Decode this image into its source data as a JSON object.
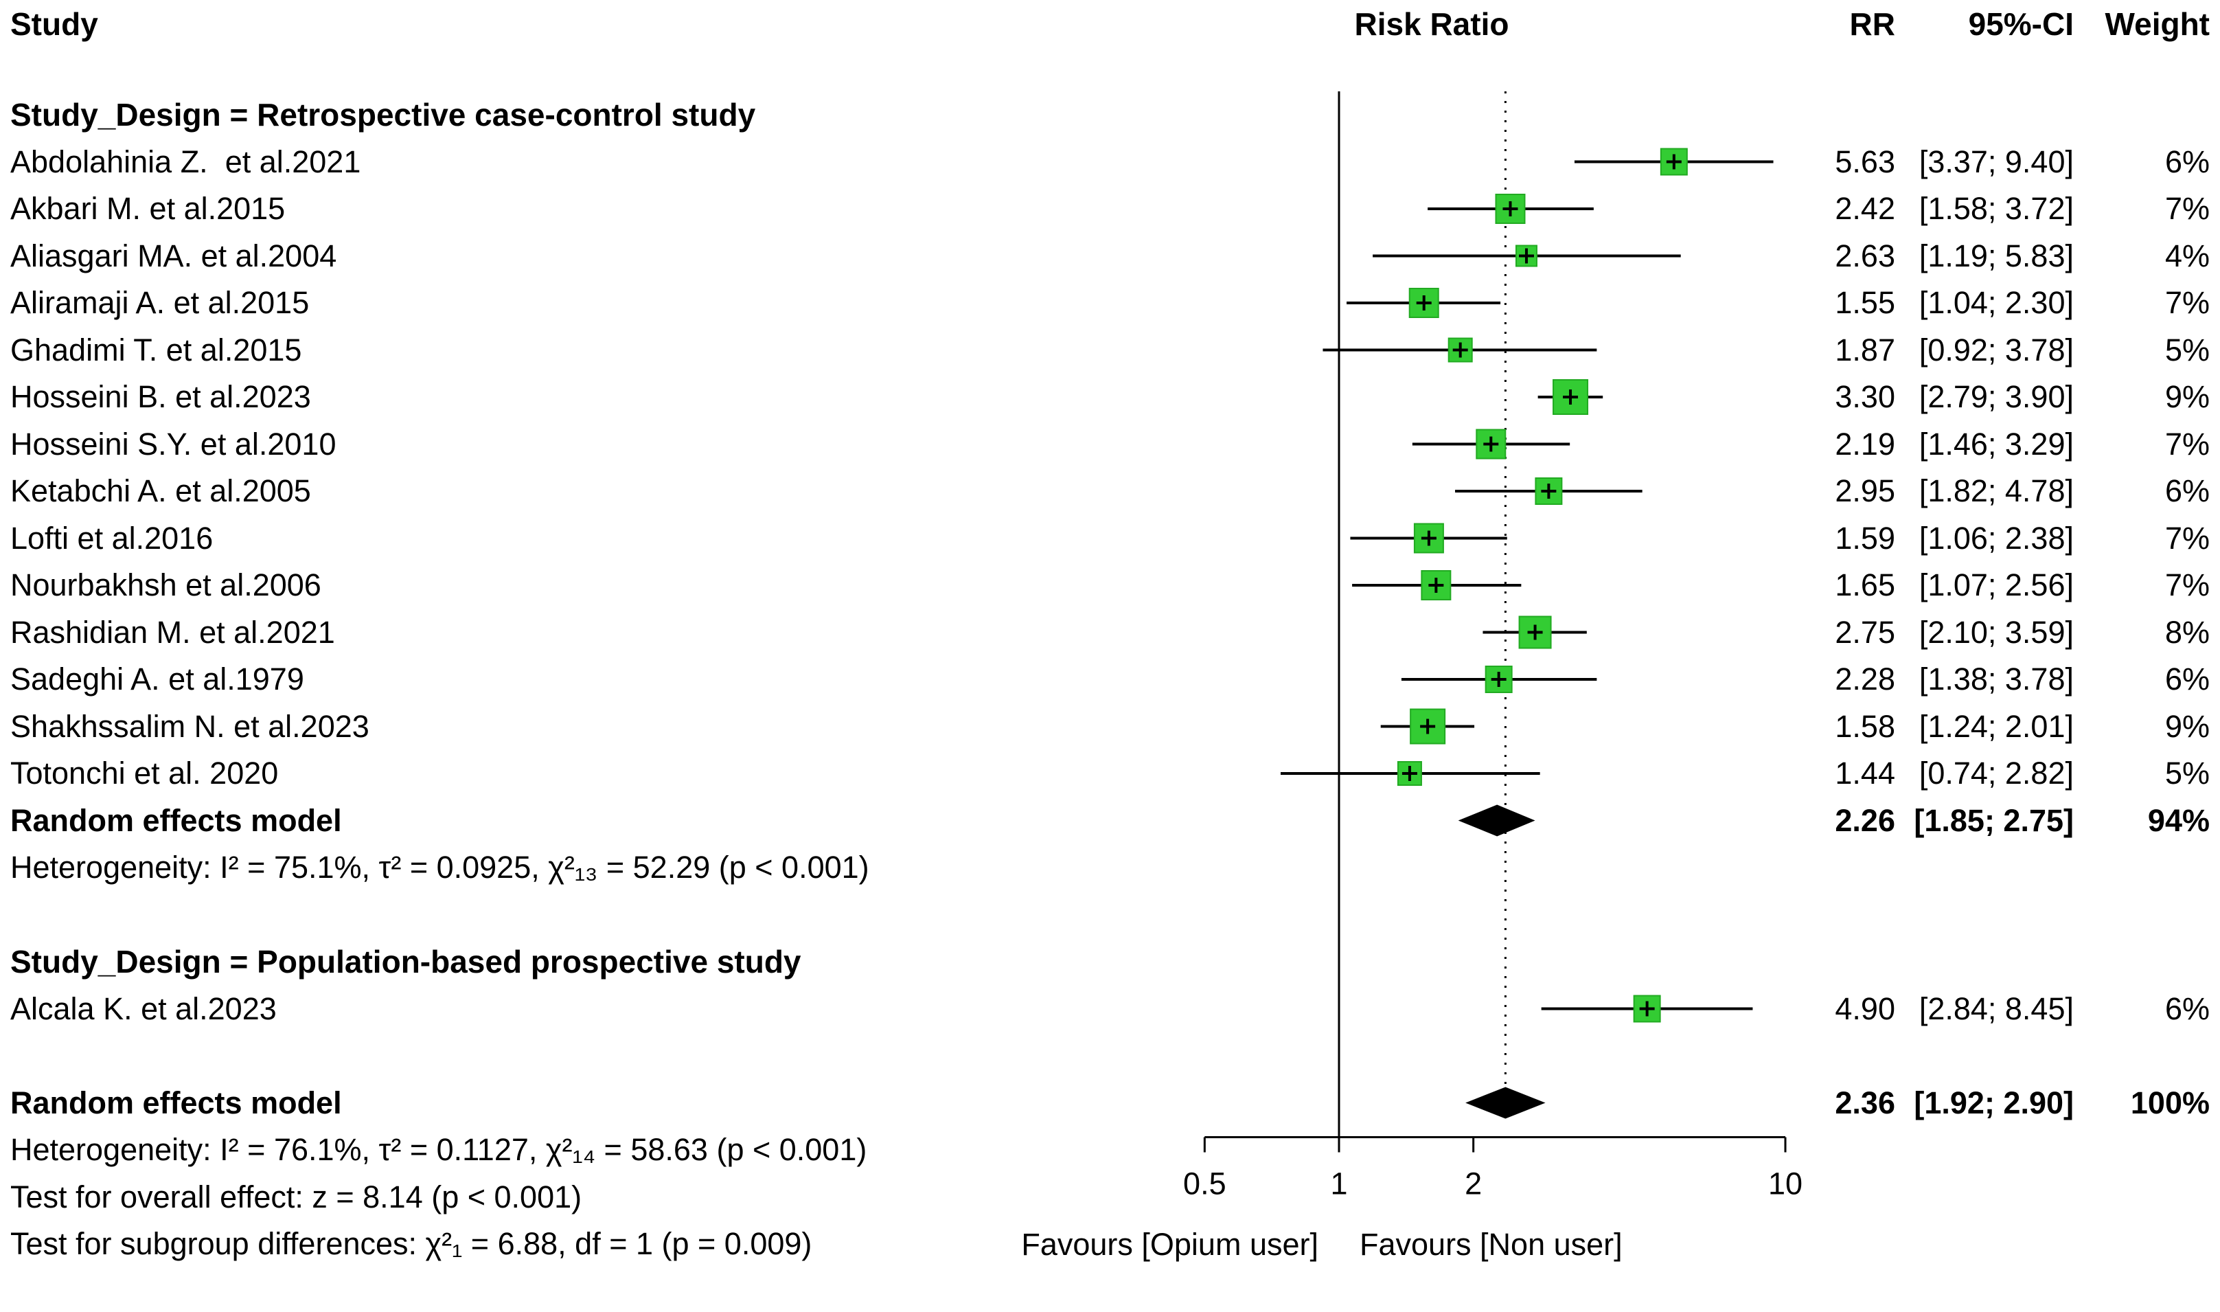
{
  "columns": {
    "study": "Study",
    "risk_ratio": "Risk Ratio",
    "rr": "RR",
    "ci": "95%-CI",
    "weight": "Weight"
  },
  "chart_data": {
    "type": "forest",
    "x_scale": "log",
    "x_ticks": [
      0.5,
      1,
      2,
      10
    ],
    "x_tick_labels": [
      "0.5",
      "1",
      "2",
      "10"
    ],
    "reference_line": 1,
    "dashed_line_at": 2.36,
    "favours_left": "Favours [Opium user]",
    "favours_right": "Favours [Non user]",
    "marker_color": "#33cc33",
    "marker_edge_color": "#22aa22",
    "line_color": "#000000",
    "subgroups": [
      {
        "title": "Study_Design = Retrospective case-control study",
        "studies": [
          {
            "name": "Abdolahinia Z.  et al.2021",
            "rr": 5.63,
            "ci_low": 3.37,
            "ci_high": 9.4,
            "rr_label": "5.63",
            "ci_label": "[3.37; 9.40]",
            "weight": 6,
            "weight_label": "6%"
          },
          {
            "name": "Akbari M. et al.2015",
            "rr": 2.42,
            "ci_low": 1.58,
            "ci_high": 3.72,
            "rr_label": "2.42",
            "ci_label": "[1.58; 3.72]",
            "weight": 7,
            "weight_label": "7%"
          },
          {
            "name": "Aliasgari MA. et al.2004",
            "rr": 2.63,
            "ci_low": 1.19,
            "ci_high": 5.83,
            "rr_label": "2.63",
            "ci_label": "[1.19; 5.83]",
            "weight": 4,
            "weight_label": "4%"
          },
          {
            "name": "Aliramaji A. et al.2015",
            "rr": 1.55,
            "ci_low": 1.04,
            "ci_high": 2.3,
            "rr_label": "1.55",
            "ci_label": "[1.04; 2.30]",
            "weight": 7,
            "weight_label": "7%"
          },
          {
            "name": "Ghadimi T. et al.2015",
            "rr": 1.87,
            "ci_low": 0.92,
            "ci_high": 3.78,
            "rr_label": "1.87",
            "ci_label": "[0.92; 3.78]",
            "weight": 5,
            "weight_label": "5%"
          },
          {
            "name": "Hosseini B. et al.2023",
            "rr": 3.3,
            "ci_low": 2.79,
            "ci_high": 3.9,
            "rr_label": "3.30",
            "ci_label": "[2.79; 3.90]",
            "weight": 9,
            "weight_label": "9%"
          },
          {
            "name": "Hosseini S.Y. et al.2010",
            "rr": 2.19,
            "ci_low": 1.46,
            "ci_high": 3.29,
            "rr_label": "2.19",
            "ci_label": "[1.46; 3.29]",
            "weight": 7,
            "weight_label": "7%"
          },
          {
            "name": "Ketabchi A. et al.2005",
            "rr": 2.95,
            "ci_low": 1.82,
            "ci_high": 4.78,
            "rr_label": "2.95",
            "ci_label": "[1.82; 4.78]",
            "weight": 6,
            "weight_label": "6%"
          },
          {
            "name": "Lofti et al.2016",
            "rr": 1.59,
            "ci_low": 1.06,
            "ci_high": 2.38,
            "rr_label": "1.59",
            "ci_label": "[1.06; 2.38]",
            "weight": 7,
            "weight_label": "7%"
          },
          {
            "name": "Nourbakhsh et al.2006",
            "rr": 1.65,
            "ci_low": 1.07,
            "ci_high": 2.56,
            "rr_label": "1.65",
            "ci_label": "[1.07; 2.56]",
            "weight": 7,
            "weight_label": "7%"
          },
          {
            "name": "Rashidian M. et al.2021",
            "rr": 2.75,
            "ci_low": 2.1,
            "ci_high": 3.59,
            "rr_label": "2.75",
            "ci_label": "[2.10; 3.59]",
            "weight": 8,
            "weight_label": "8%"
          },
          {
            "name": "Sadeghi A. et al.1979",
            "rr": 2.28,
            "ci_low": 1.38,
            "ci_high": 3.78,
            "rr_label": "2.28",
            "ci_label": "[1.38; 3.78]",
            "weight": 6,
            "weight_label": "6%"
          },
          {
            "name": "Shakhssalim N. et al.2023",
            "rr": 1.58,
            "ci_low": 1.24,
            "ci_high": 2.01,
            "rr_label": "1.58",
            "ci_label": "[1.24; 2.01]",
            "weight": 9,
            "weight_label": "9%"
          },
          {
            "name": "Totonchi et al. 2020",
            "rr": 1.44,
            "ci_low": 0.74,
            "ci_high": 2.82,
            "rr_label": "1.44",
            "ci_label": "[0.74; 2.82]",
            "weight": 5,
            "weight_label": "5%"
          }
        ],
        "summary": {
          "label": "Random effects model",
          "rr": 2.26,
          "ci_low": 1.85,
          "ci_high": 2.75,
          "rr_label": "2.26",
          "ci_label": "[1.85; 2.75]",
          "weight_label": "94%"
        },
        "heterogeneity": "Heterogeneity: I² = 75.1%, τ² = 0.0925, χ²₁₃ = 52.29 (p < 0.001)"
      },
      {
        "title": "Study_Design = Population-based prospective study",
        "studies": [
          {
            "name": "Alcala K. et al.2023",
            "rr": 4.9,
            "ci_low": 2.84,
            "ci_high": 8.45,
            "rr_label": "4.90",
            "ci_label": "[2.84; 8.45]",
            "weight": 6,
            "weight_label": "6%"
          }
        ]
      }
    ],
    "overall": {
      "label": "Random effects model",
      "rr": 2.36,
      "ci_low": 1.92,
      "ci_high": 2.9,
      "rr_label": "2.36",
      "ci_label": "[1.92; 2.90]",
      "weight_label": "100%",
      "heterogeneity": "Heterogeneity: I² = 76.1%, τ² = 0.1127, χ²₁₄ = 58.63 (p < 0.001)",
      "test_overall": "Test for overall effect: z = 8.14 (p < 0.001)",
      "test_subgroup": "Test for subgroup differences: χ²₁ = 6.88, df = 1 (p = 0.009)"
    }
  }
}
